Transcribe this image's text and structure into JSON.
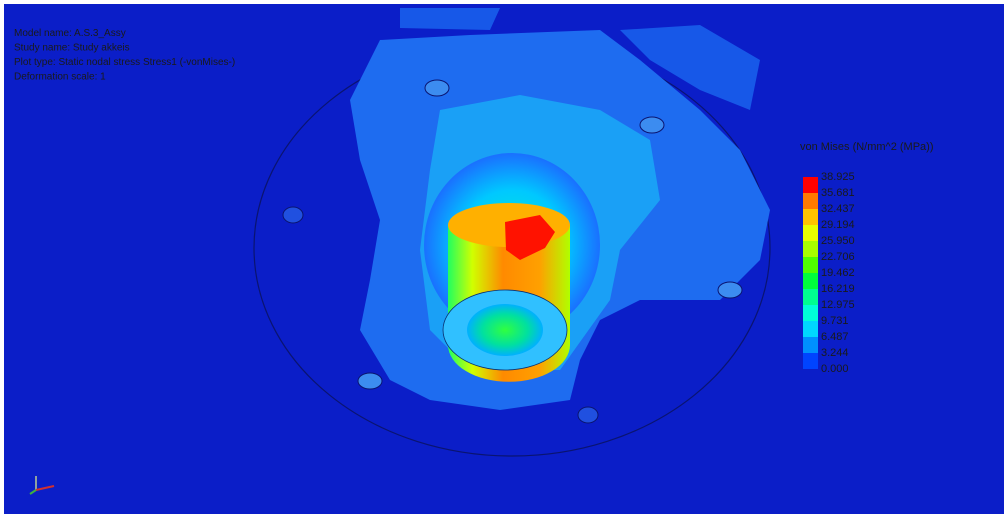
{
  "info": {
    "lines": [
      "Model name: A.S.3_Assy",
      "Study name: Study akkeis",
      "Plot type: Static nodal stress Stress1 (-vonMises-)",
      "Deformation scale: 1"
    ]
  },
  "legend": {
    "title": "von Mises (N/mm^2 (MPa))",
    "labels": [
      "38.925",
      "35.681",
      "32.437",
      "29.194",
      "25.950",
      "22.706",
      "19.462",
      "16.219",
      "12.975",
      "9.731",
      "6.487",
      "3.244",
      "0.000"
    ],
    "colors": [
      "#ff0000",
      "#ff7a00",
      "#ffc400",
      "#e8ff00",
      "#a8ff00",
      "#50ff00",
      "#00ff3c",
      "#00ff90",
      "#00ffd8",
      "#00d8ff",
      "#0090ff",
      "#0044ff"
    ]
  }
}
